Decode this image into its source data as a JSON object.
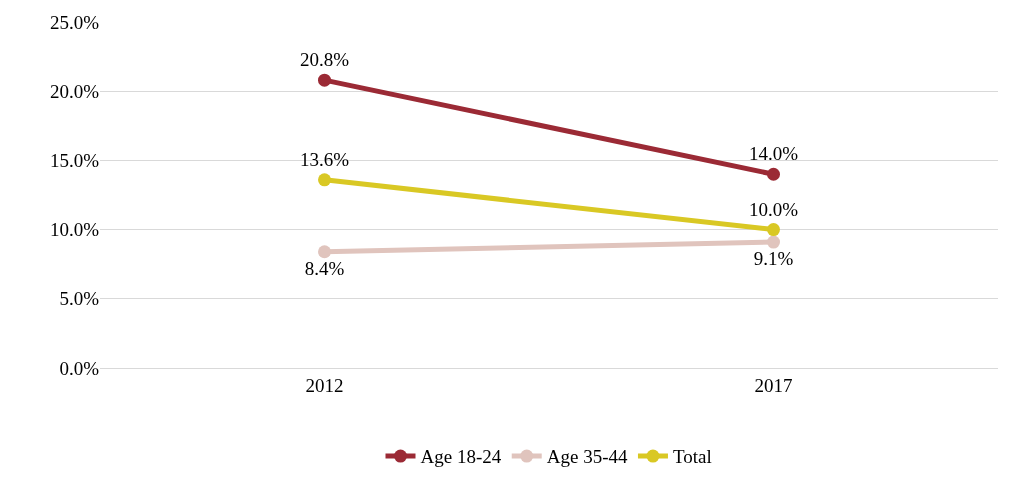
{
  "chart_data": {
    "type": "line",
    "categories": [
      "2012",
      "2017"
    ],
    "series": [
      {
        "name": "Age 18-24",
        "color": "#9b2a35",
        "values": [
          20.8,
          14.0
        ],
        "value_labels": [
          "20.8%",
          "14.0%"
        ]
      },
      {
        "name": "Age 35-44",
        "color": "#e0c4bd",
        "values": [
          8.4,
          9.1
        ],
        "value_labels": [
          "8.4%",
          "9.1%"
        ]
      },
      {
        "name": "Total",
        "color": "#d9c824",
        "values": [
          13.6,
          10.0
        ],
        "value_labels": [
          "13.6%",
          "10.0%"
        ]
      }
    ],
    "ylim": [
      0,
      25
    ],
    "yticks": [
      {
        "value": 0,
        "label": "0.0%"
      },
      {
        "value": 5,
        "label": "5.0%"
      },
      {
        "value": 10,
        "label": "10.0%"
      },
      {
        "value": 15,
        "label": "15.0%"
      },
      {
        "value": 20,
        "label": "20.0%"
      },
      {
        "value": 25,
        "label": "25.0%"
      }
    ],
    "grid": "y",
    "legend": "bottom",
    "marker": "circle",
    "line_style": "solid"
  }
}
